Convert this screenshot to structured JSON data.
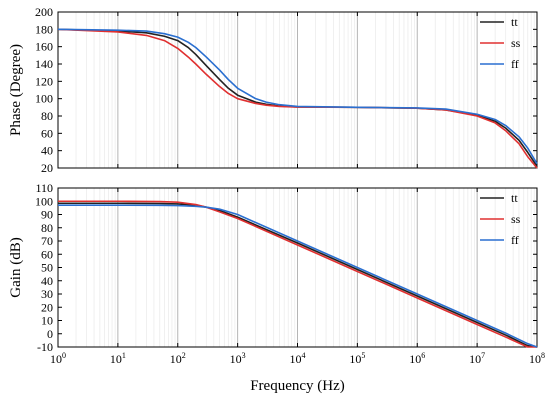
{
  "chart_data": [
    {
      "type": "line",
      "ylabel": "Phase (Degree)",
      "xscale": "log",
      "xlim": [
        1,
        100000000
      ],
      "ylim": [
        20,
        200
      ],
      "yticks": [
        20,
        40,
        60,
        80,
        100,
        120,
        140,
        160,
        180,
        200
      ],
      "grid": "vertical",
      "legend_position": "top-right",
      "series": [
        {
          "name": "tt",
          "color": "#222222",
          "x": [
            1,
            10,
            30,
            60,
            100,
            150,
            200,
            300,
            500,
            700,
            1000,
            2000,
            3000,
            5000,
            10000,
            100000,
            1000000,
            3000000,
            10000000,
            20000000,
            30000000,
            50000000,
            70000000,
            100000000
          ],
          "y": [
            180,
            178,
            176,
            172,
            167,
            159,
            151,
            138,
            122,
            112,
            104,
            96,
            93.5,
            91.5,
            90.5,
            90,
            89,
            87,
            81,
            74,
            66,
            52,
            38,
            22
          ]
        },
        {
          "name": "ss",
          "color": "#e03030",
          "x": [
            1,
            10,
            30,
            60,
            100,
            150,
            200,
            300,
            500,
            700,
            1000,
            2000,
            3000,
            5000,
            10000,
            100000,
            1000000,
            3000000,
            10000000,
            20000000,
            30000000,
            50000000,
            70000000,
            100000000
          ],
          "y": [
            180,
            177,
            173,
            167,
            158,
            148,
            140,
            128,
            114,
            106,
            100,
            94.5,
            92.5,
            91,
            90.3,
            90,
            89,
            87,
            80,
            72,
            63,
            48,
            33,
            18
          ]
        },
        {
          "name": "ff",
          "color": "#2a6fd0",
          "x": [
            1,
            10,
            30,
            60,
            100,
            150,
            200,
            300,
            500,
            700,
            1000,
            2000,
            3000,
            5000,
            10000,
            100000,
            1000000,
            3000000,
            10000000,
            20000000,
            30000000,
            50000000,
            70000000,
            100000000
          ],
          "y": [
            180,
            179,
            178,
            175,
            171,
            165,
            159,
            148,
            133,
            122,
            112,
            100,
            96,
            93,
            91,
            90,
            89.3,
            88,
            82,
            76,
            69,
            56,
            43,
            25
          ]
        }
      ]
    },
    {
      "type": "line",
      "xlabel": "Frequency (Hz)",
      "ylabel": "Gain (dB)",
      "xscale": "log",
      "xlim": [
        1,
        100000000
      ],
      "ylim": [
        -10,
        110
      ],
      "yticks": [
        -10,
        0,
        10,
        20,
        30,
        40,
        50,
        60,
        70,
        80,
        90,
        100,
        110
      ],
      "xticks": [
        {
          "base": "10",
          "exp": "0"
        },
        {
          "base": "10",
          "exp": "1"
        },
        {
          "base": "10",
          "exp": "2"
        },
        {
          "base": "10",
          "exp": "3"
        },
        {
          "base": "10",
          "exp": "4"
        },
        {
          "base": "10",
          "exp": "5"
        },
        {
          "base": "10",
          "exp": "6"
        },
        {
          "base": "10",
          "exp": "7"
        },
        {
          "base": "10",
          "exp": "8"
        }
      ],
      "grid": "vertical",
      "legend_position": "top-right",
      "series": [
        {
          "name": "tt",
          "color": "#222222",
          "x": [
            1,
            10,
            50,
            100,
            200,
            300,
            500,
            1000,
            10000,
            100000,
            1000000,
            10000000,
            30000000,
            70000000,
            100000000
          ],
          "y": [
            98.5,
            98.5,
            98.3,
            98,
            97,
            95.5,
            93,
            88,
            68.5,
            48.5,
            28.5,
            8.5,
            -1,
            -9,
            -12
          ]
        },
        {
          "name": "ss",
          "color": "#e03030",
          "x": [
            1,
            10,
            50,
            100,
            200,
            300,
            500,
            1000,
            10000,
            100000,
            1000000,
            10000000,
            30000000,
            70000000,
            100000000
          ],
          "y": [
            100,
            100,
            99.8,
            99.3,
            97.5,
            95.5,
            92,
            87,
            67,
            47,
            27,
            7,
            -2.5,
            -10.5,
            -13
          ]
        },
        {
          "name": "ff",
          "color": "#2a6fd0",
          "x": [
            1,
            10,
            50,
            100,
            200,
            300,
            500,
            1000,
            10000,
            100000,
            1000000,
            10000000,
            30000000,
            70000000,
            100000000
          ],
          "y": [
            97,
            97,
            96.9,
            96.7,
            96.2,
            95.5,
            94,
            90,
            70,
            50,
            30,
            10,
            0.5,
            -7.5,
            -10.5
          ]
        }
      ]
    }
  ]
}
